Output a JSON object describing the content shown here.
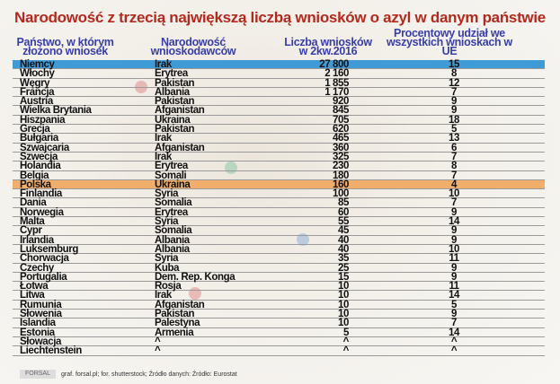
{
  "title": "Narodowość z trzecią największą liczbą wniosków o azyl w danym państwie",
  "headers": {
    "country": "Państwo, w którym złożono wniosek",
    "nationality": "Narodowość wnioskodawców",
    "count": "Liczba wniosków w 2kw.2016",
    "share": "Procentowy udział we wszystkich wnioskach w UE"
  },
  "highlight_colors": {
    "Niemcy": "#3f9ad6",
    "Polska": "#f0ae6a"
  },
  "rows": [
    {
      "country": "Niemcy",
      "nationality": "Irak",
      "count": "27 800",
      "share": "15"
    },
    {
      "country": "Włochy",
      "nationality": "Erytrea",
      "count": "2 160",
      "share": "8"
    },
    {
      "country": "Węgry",
      "nationality": "Pakistan",
      "count": "1 855",
      "share": "12"
    },
    {
      "country": "Francja",
      "nationality": "Albania",
      "count": "1 170",
      "share": "7"
    },
    {
      "country": "Austria",
      "nationality": "Pakistan",
      "count": "920",
      "share": "9"
    },
    {
      "country": "Wielka Brytania",
      "nationality": "Afganistan",
      "count": "845",
      "share": "9"
    },
    {
      "country": "Hiszpania",
      "nationality": "Ukraina",
      "count": "705",
      "share": "18"
    },
    {
      "country": "Grecja",
      "nationality": "Pakistan",
      "count": "620",
      "share": "5"
    },
    {
      "country": "Bułgaria",
      "nationality": "Irak",
      "count": "465",
      "share": "13"
    },
    {
      "country": "Szwajcaria",
      "nationality": "Afganistan",
      "count": "360",
      "share": "6"
    },
    {
      "country": "Szwecja",
      "nationality": "Irak",
      "count": "325",
      "share": "7"
    },
    {
      "country": "Holandia",
      "nationality": "Erytrea",
      "count": "230",
      "share": "8"
    },
    {
      "country": "Belgia",
      "nationality": "Somali",
      "count": "180",
      "share": "7"
    },
    {
      "country": "Polska",
      "nationality": "Ukraina",
      "count": "160",
      "share": "4"
    },
    {
      "country": "Finlandia",
      "nationality": "Syria",
      "count": "100",
      "share": "10"
    },
    {
      "country": "Dania",
      "nationality": "Somalia",
      "count": "85",
      "share": "7"
    },
    {
      "country": "Norwegia",
      "nationality": "Erytrea",
      "count": "60",
      "share": "9"
    },
    {
      "country": "Malta",
      "nationality": "Syria",
      "count": "55",
      "share": "14"
    },
    {
      "country": "Cypr",
      "nationality": "Somalia",
      "count": "45",
      "share": "9"
    },
    {
      "country": "Irlandia",
      "nationality": "Albania",
      "count": "40",
      "share": "9"
    },
    {
      "country": "Luksemburg",
      "nationality": "Albania",
      "count": "40",
      "share": "10"
    },
    {
      "country": "Chorwacja",
      "nationality": "Syria",
      "count": "35",
      "share": "11"
    },
    {
      "country": "Czechy",
      "nationality": "Kuba",
      "count": "25",
      "share": "9"
    },
    {
      "country": "Portugalia",
      "nationality": "Dem. Rep. Konga",
      "count": "15",
      "share": "9"
    },
    {
      "country": "Łotwa",
      "nationality": "Rosja",
      "count": "10",
      "share": "11"
    },
    {
      "country": "Litwa",
      "nationality": "Irak",
      "count": "10",
      "share": "14"
    },
    {
      "country": "Rumunia",
      "nationality": "Afganistan",
      "count": "10",
      "share": "5"
    },
    {
      "country": "Słowenia",
      "nationality": "Pakistan",
      "count": "10",
      "share": "9"
    },
    {
      "country": "Islandia",
      "nationality": "Palestyna",
      "count": "10",
      "share": "7"
    },
    {
      "country": "Estonia",
      "nationality": "Armenia",
      "count": "5",
      "share": "14"
    },
    {
      "country": "Słowacja",
      "nationality": "^",
      "count": "^",
      "share": "^"
    },
    {
      "country": "Liechtenstein",
      "nationality": "^",
      "count": "^",
      "share": "^"
    }
  ],
  "footer": {
    "logo": "FORSAL.PL",
    "credits": "graf. forsal.pl; for. shutterstock;  Źródło danych:  Źródło: Eurostat"
  }
}
